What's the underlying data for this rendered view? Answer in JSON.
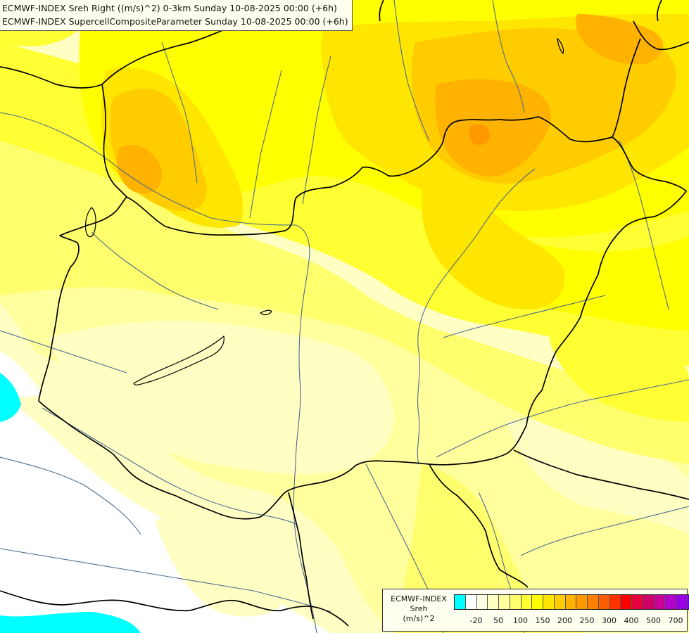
{
  "header": {
    "line1": "ECMWF-INDEX Sreh Right ((m/s)^2) 0-3km Sunday 10-08-2025 00:00 (+6h)",
    "line2": "ECMWF-INDEX SupercellCompositeParameter Sunday 10-08-2025 00:00 (+6h)"
  },
  "legend": {
    "source": "ECMWF-INDEX",
    "variable": "Sreh",
    "unit": "(m/s)^2",
    "colors": [
      "#00ffff",
      "#ffffff",
      "#ffffe6",
      "#ffffc4",
      "#ffff9e",
      "#ffff6e",
      "#ffff33",
      "#ffff00",
      "#ffe600",
      "#ffcc00",
      "#ffb300",
      "#ff9900",
      "#ff8000",
      "#ff5c00",
      "#ff3300",
      "#ff0000",
      "#e6003c",
      "#cc0066",
      "#cc0099",
      "#b300cc",
      "#9900e6",
      "#7300e6",
      "#4d00b3",
      "#1a0080"
    ],
    "ticks": [
      "-20",
      "50",
      "100",
      "150",
      "200",
      "250",
      "300",
      "400",
      "500",
      "700"
    ]
  },
  "map_colors": {
    "white": "#ffffff",
    "cream": "#ffffc4",
    "pale": "#ffff9e",
    "light": "#ffff6e",
    "yellow": "#ffff33",
    "bright": "#ffff00",
    "gold": "#ffe600",
    "amber": "#ffcc00",
    "orange": "#ffb300",
    "deep": "#ff9900",
    "cyan": "#00ffff",
    "border": "#000000",
    "river": "#4a6a8e"
  }
}
